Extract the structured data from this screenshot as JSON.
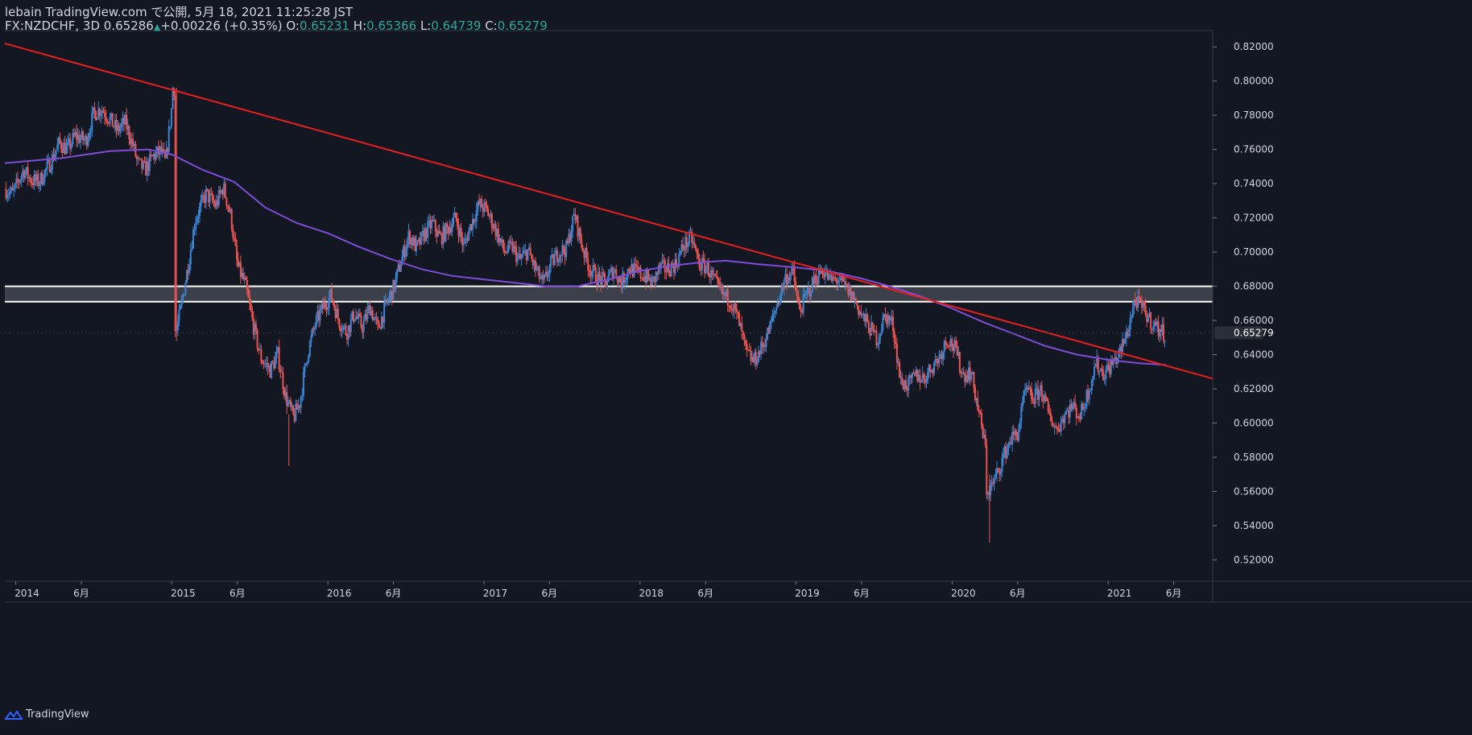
{
  "header": {
    "published": "lebain TradingView.com で公開, 5月 18, 2021 11:25:28 JST",
    "symbol": "FX:NZDCHF, 3D",
    "last": "0.65286",
    "change": "+0.00226 (+0.35%)",
    "o_label": "O:",
    "o": "0.65231",
    "h_label": "H:",
    "h": "0.65366",
    "l_label": "L:",
    "l": "0.64739",
    "c_label": "C:",
    "c": "0.65279"
  },
  "footer": {
    "brand": "TradingView"
  },
  "colors": {
    "background": "#131722",
    "up": "#3a86d4",
    "down": "#ef5350",
    "trendline": "#e91e1e",
    "ma": "#7e4bd6",
    "zone": "#ffffff"
  },
  "chart_data": {
    "type": "candlestick",
    "symbol": "FX:NZDCHF",
    "interval": "3D",
    "x_ticks": [
      {
        "label": "2014",
        "t": 2014.0
      },
      {
        "label": "6月",
        "t": 2014.42
      },
      {
        "label": "2015",
        "t": 2015.0
      },
      {
        "label": "6月",
        "t": 2015.42
      },
      {
        "label": "2016",
        "t": 2016.0
      },
      {
        "label": "6月",
        "t": 2016.42
      },
      {
        "label": "2017",
        "t": 2017.0
      },
      {
        "label": "6月",
        "t": 2017.42
      },
      {
        "label": "2018",
        "t": 2018.0
      },
      {
        "label": "6月",
        "t": 2018.42
      },
      {
        "label": "2019",
        "t": 2019.0
      },
      {
        "label": "6月",
        "t": 2019.42
      },
      {
        "label": "2020",
        "t": 2020.0
      },
      {
        "label": "6月",
        "t": 2020.42
      },
      {
        "label": "2021",
        "t": 2021.0
      },
      {
        "label": "6月",
        "t": 2021.42
      }
    ],
    "xlim": [
      2013.93,
      2021.67
    ],
    "y_ticks": [
      "0.82000",
      "0.80000",
      "0.78000",
      "0.76000",
      "0.74000",
      "0.72000",
      "0.70000",
      "0.68000",
      "0.66000",
      "0.64000",
      "0.62000",
      "0.60000",
      "0.58000",
      "0.56000",
      "0.54000",
      "0.52000"
    ],
    "ylim": [
      0.5075,
      0.8295
    ],
    "last_price_label": "0.65279",
    "last_price": 0.65279,
    "close_path": [
      [
        2013.93,
        0.737
      ],
      [
        2013.98,
        0.734
      ],
      [
        2014.05,
        0.748
      ],
      [
        2014.1,
        0.742
      ],
      [
        2014.15,
        0.741
      ],
      [
        2014.22,
        0.752
      ],
      [
        2014.28,
        0.764
      ],
      [
        2014.33,
        0.76
      ],
      [
        2014.38,
        0.768
      ],
      [
        2014.45,
        0.765
      ],
      [
        2014.5,
        0.781
      ],
      [
        2014.55,
        0.784
      ],
      [
        2014.6,
        0.778
      ],
      [
        2014.65,
        0.771
      ],
      [
        2014.7,
        0.776
      ],
      [
        2014.75,
        0.763
      ],
      [
        2014.78,
        0.752
      ],
      [
        2014.83,
        0.748
      ],
      [
        2014.88,
        0.756
      ],
      [
        2014.93,
        0.759
      ],
      [
        2014.96,
        0.752
      ],
      [
        2015.0,
        0.785
      ],
      [
        2015.02,
        0.796
      ],
      [
        2015.03,
        0.654
      ],
      [
        2015.06,
        0.668
      ],
      [
        2015.1,
        0.69
      ],
      [
        2015.15,
        0.719
      ],
      [
        2015.22,
        0.734
      ],
      [
        2015.28,
        0.727
      ],
      [
        2015.33,
        0.738
      ],
      [
        2015.38,
        0.72
      ],
      [
        2015.42,
        0.692
      ],
      [
        2015.47,
        0.681
      ],
      [
        2015.52,
        0.658
      ],
      [
        2015.57,
        0.638
      ],
      [
        2015.63,
        0.631
      ],
      [
        2015.68,
        0.64
      ],
      [
        2015.73,
        0.615
      ],
      [
        2015.78,
        0.603
      ],
      [
        2015.82,
        0.612
      ],
      [
        2015.87,
        0.641
      ],
      [
        2015.92,
        0.658
      ],
      [
        2015.97,
        0.668
      ],
      [
        2016.02,
        0.675
      ],
      [
        2016.07,
        0.66
      ],
      [
        2016.12,
        0.653
      ],
      [
        2016.17,
        0.664
      ],
      [
        2016.22,
        0.656
      ],
      [
        2016.27,
        0.668
      ],
      [
        2016.32,
        0.655
      ],
      [
        2016.37,
        0.668
      ],
      [
        2016.42,
        0.679
      ],
      [
        2016.48,
        0.698
      ],
      [
        2016.52,
        0.71
      ],
      [
        2016.57,
        0.702
      ],
      [
        2016.62,
        0.711
      ],
      [
        2016.67,
        0.717
      ],
      [
        2016.72,
        0.708
      ],
      [
        2016.77,
        0.714
      ],
      [
        2016.82,
        0.72
      ],
      [
        2016.87,
        0.703
      ],
      [
        2016.92,
        0.717
      ],
      [
        2016.97,
        0.728
      ],
      [
        2017.02,
        0.724
      ],
      [
        2017.08,
        0.712
      ],
      [
        2017.13,
        0.7
      ],
      [
        2017.18,
        0.703
      ],
      [
        2017.23,
        0.695
      ],
      [
        2017.28,
        0.701
      ],
      [
        2017.33,
        0.69
      ],
      [
        2017.38,
        0.681
      ],
      [
        2017.43,
        0.693
      ],
      [
        2017.48,
        0.7
      ],
      [
        2017.53,
        0.702
      ],
      [
        2017.58,
        0.722
      ],
      [
        2017.63,
        0.703
      ],
      [
        2017.68,
        0.69
      ],
      [
        2017.73,
        0.685
      ],
      [
        2017.78,
        0.682
      ],
      [
        2017.83,
        0.69
      ],
      [
        2017.88,
        0.682
      ],
      [
        2017.93,
        0.691
      ],
      [
        2017.98,
        0.688
      ],
      [
        2018.03,
        0.686
      ],
      [
        2018.08,
        0.682
      ],
      [
        2018.13,
        0.691
      ],
      [
        2018.18,
        0.69
      ],
      [
        2018.23,
        0.693
      ],
      [
        2018.28,
        0.704
      ],
      [
        2018.33,
        0.708
      ],
      [
        2018.38,
        0.693
      ],
      [
        2018.43,
        0.691
      ],
      [
        2018.48,
        0.682
      ],
      [
        2018.53,
        0.675
      ],
      [
        2018.58,
        0.672
      ],
      [
        2018.63,
        0.66
      ],
      [
        2018.68,
        0.641
      ],
      [
        2018.73,
        0.636
      ],
      [
        2018.78,
        0.644
      ],
      [
        2018.83,
        0.655
      ],
      [
        2018.88,
        0.67
      ],
      [
        2018.93,
        0.685
      ],
      [
        2018.98,
        0.688
      ],
      [
        2019.02,
        0.665
      ],
      [
        2019.07,
        0.675
      ],
      [
        2019.12,
        0.684
      ],
      [
        2019.17,
        0.69
      ],
      [
        2019.22,
        0.683
      ],
      [
        2019.27,
        0.684
      ],
      [
        2019.32,
        0.679
      ],
      [
        2019.37,
        0.673
      ],
      [
        2019.42,
        0.663
      ],
      [
        2019.47,
        0.656
      ],
      [
        2019.52,
        0.649
      ],
      [
        2019.57,
        0.663
      ],
      [
        2019.62,
        0.658
      ],
      [
        2019.67,
        0.624
      ],
      [
        2019.72,
        0.622
      ],
      [
        2019.77,
        0.628
      ],
      [
        2019.82,
        0.626
      ],
      [
        2019.87,
        0.633
      ],
      [
        2019.92,
        0.639
      ],
      [
        2019.97,
        0.65
      ],
      [
        2020.02,
        0.643
      ],
      [
        2020.07,
        0.628
      ],
      [
        2020.12,
        0.63
      ],
      [
        2020.17,
        0.607
      ],
      [
        2020.22,
        0.582
      ],
      [
        2020.24,
        0.561
      ],
      [
        2020.27,
        0.566
      ],
      [
        2020.32,
        0.578
      ],
      [
        2020.37,
        0.59
      ],
      [
        2020.42,
        0.594
      ],
      [
        2020.47,
        0.619
      ],
      [
        2020.52,
        0.614
      ],
      [
        2020.57,
        0.62
      ],
      [
        2020.62,
        0.605
      ],
      [
        2020.67,
        0.596
      ],
      [
        2020.72,
        0.605
      ],
      [
        2020.77,
        0.61
      ],
      [
        2020.82,
        0.604
      ],
      [
        2020.87,
        0.618
      ],
      [
        2020.92,
        0.635
      ],
      [
        2020.97,
        0.629
      ],
      [
        2021.02,
        0.634
      ],
      [
        2021.07,
        0.64
      ],
      [
        2021.12,
        0.652
      ],
      [
        2021.17,
        0.672
      ],
      [
        2021.22,
        0.667
      ],
      [
        2021.27,
        0.66
      ],
      [
        2021.32,
        0.655
      ],
      [
        2021.37,
        0.652
      ]
    ],
    "moving_average": [
      [
        2013.93,
        0.752
      ],
      [
        2014.3,
        0.755
      ],
      [
        2014.6,
        0.759
      ],
      [
        2014.85,
        0.76
      ],
      [
        2015.0,
        0.757
      ],
      [
        2015.2,
        0.748
      ],
      [
        2015.4,
        0.741
      ],
      [
        2015.6,
        0.726
      ],
      [
        2015.8,
        0.717
      ],
      [
        2016.0,
        0.711
      ],
      [
        2016.2,
        0.703
      ],
      [
        2016.4,
        0.696
      ],
      [
        2016.6,
        0.69
      ],
      [
        2016.8,
        0.686
      ],
      [
        2017.0,
        0.684
      ],
      [
        2017.2,
        0.682
      ],
      [
        2017.4,
        0.68
      ],
      [
        2017.6,
        0.68
      ],
      [
        2017.8,
        0.684
      ],
      [
        2018.0,
        0.689
      ],
      [
        2018.2,
        0.692
      ],
      [
        2018.4,
        0.694
      ],
      [
        2018.55,
        0.695
      ],
      [
        2018.75,
        0.693
      ],
      [
        2019.0,
        0.691
      ],
      [
        2019.2,
        0.689
      ],
      [
        2019.4,
        0.685
      ],
      [
        2019.6,
        0.68
      ],
      [
        2019.8,
        0.674
      ],
      [
        2020.0,
        0.667
      ],
      [
        2020.2,
        0.659
      ],
      [
        2020.4,
        0.652
      ],
      [
        2020.6,
        0.645
      ],
      [
        2020.8,
        0.64
      ],
      [
        2021.0,
        0.637
      ],
      [
        2021.2,
        0.635
      ],
      [
        2021.37,
        0.634
      ]
    ],
    "trendline": {
      "p1": [
        2013.93,
        0.822
      ],
      "p2": [
        2021.67,
        0.626
      ]
    },
    "support_zone": {
      "top": 0.68,
      "bottom": 0.671
    }
  }
}
